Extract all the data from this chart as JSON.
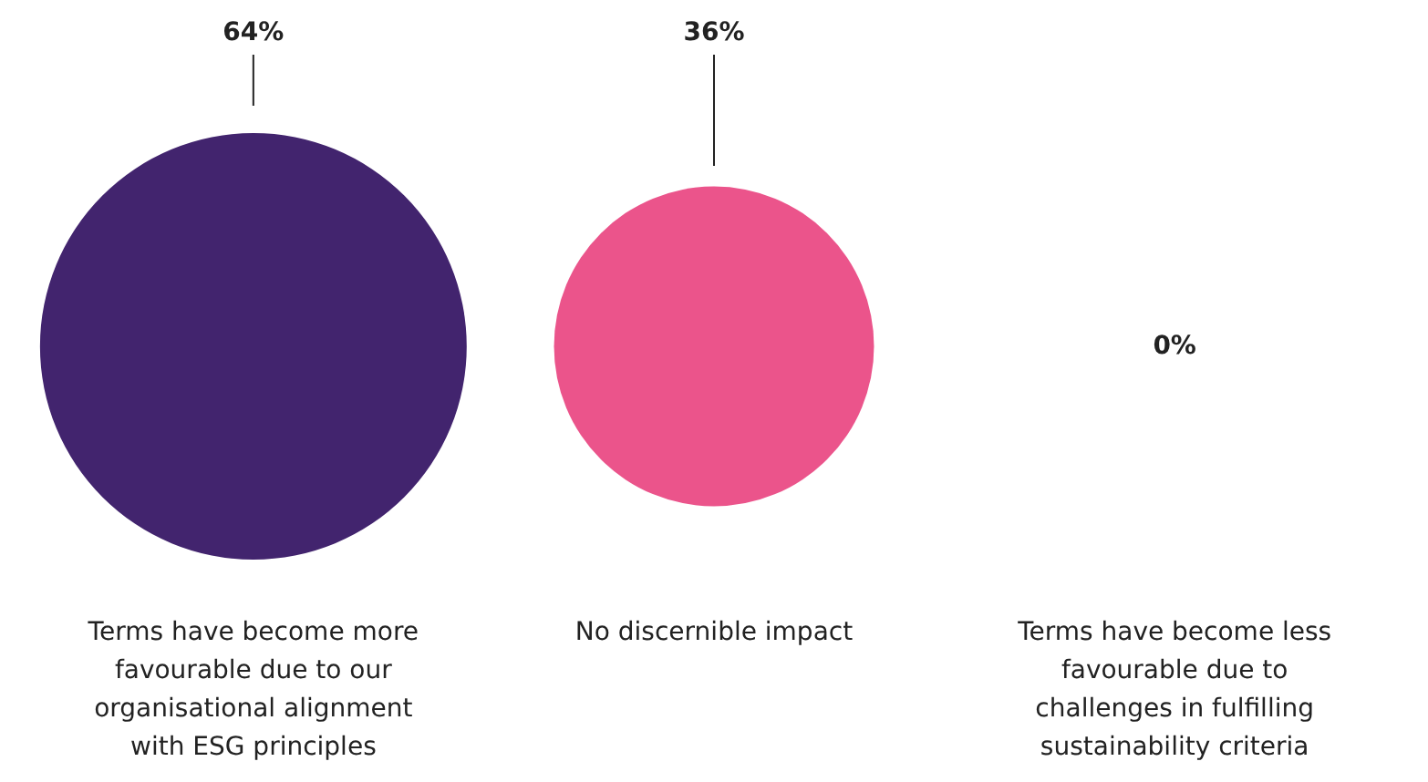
{
  "chart_data": {
    "type": "other",
    "categories": [
      "Terms have become more favourable due to our organisational alignment with ESG principles",
      "No discernible impact",
      "Terms have become less favourable due to challenges in fulfilling sustainability criteria"
    ],
    "values": [
      64,
      36,
      0
    ],
    "colors": [
      "#42246e",
      "#eb548b",
      null
    ],
    "value_labels": [
      "64%",
      "36%",
      "0%"
    ]
  }
}
